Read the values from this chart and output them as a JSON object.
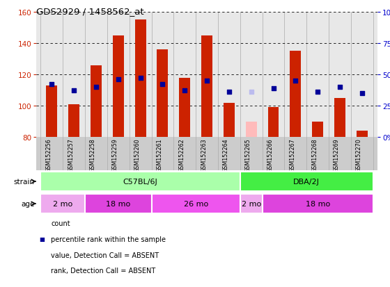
{
  "title": "GDS2929 / 1458562_at",
  "samples": [
    "GSM152256",
    "GSM152257",
    "GSM152258",
    "GSM152259",
    "GSM152260",
    "GSM152261",
    "GSM152262",
    "GSM152263",
    "GSM152264",
    "GSM152265",
    "GSM152266",
    "GSM152267",
    "GSM152268",
    "GSM152269",
    "GSM152270"
  ],
  "count_values": [
    113,
    101,
    126,
    145,
    155,
    136,
    118,
    145,
    102,
    90,
    99,
    135,
    90,
    105,
    84
  ],
  "count_absent": [
    false,
    false,
    false,
    false,
    false,
    false,
    false,
    false,
    false,
    true,
    false,
    false,
    false,
    false,
    false
  ],
  "rank_values": [
    114,
    110,
    112,
    117,
    118,
    114,
    110,
    116,
    109,
    109,
    111,
    116,
    109,
    112,
    108
  ],
  "rank_absent": [
    false,
    false,
    false,
    false,
    false,
    false,
    false,
    false,
    false,
    true,
    false,
    false,
    false,
    false,
    false
  ],
  "ylim_left": [
    80,
    160
  ],
  "ylim_right": [
    0,
    100
  ],
  "yticks_left": [
    80,
    100,
    120,
    140,
    160
  ],
  "yticks_right": [
    0,
    25,
    50,
    75,
    100
  ],
  "ytick_labels_right": [
    "0%",
    "25%",
    "50%",
    "75%",
    "100%"
  ],
  "color_count": "#cc2200",
  "color_rank": "#000099",
  "color_count_absent": "#ffbbbb",
  "color_rank_absent": "#bbbbee",
  "strain_groups": [
    {
      "label": "C57BL/6J",
      "start": 0,
      "end": 8,
      "color": "#aaffaa"
    },
    {
      "label": "DBA/2J",
      "start": 9,
      "end": 14,
      "color": "#44ee44"
    }
  ],
  "age_spans": [
    {
      "label": "2 mo",
      "start": 0,
      "end": 1,
      "color": "#eeaaee"
    },
    {
      "label": "18 mo",
      "start": 2,
      "end": 4,
      "color": "#dd44dd"
    },
    {
      "label": "26 mo",
      "start": 5,
      "end": 8,
      "color": "#ee55ee"
    },
    {
      "label": "2 mo",
      "start": 9,
      "end": 9,
      "color": "#eeaaee"
    },
    {
      "label": "18 mo",
      "start": 10,
      "end": 14,
      "color": "#dd44dd"
    }
  ],
  "bar_width": 0.5,
  "rank_marker_size": 22,
  "fig_bg": "#ffffff",
  "plot_bg": "#e8e8e8",
  "label_bg": "#cccccc",
  "label_color_left": "#cc2200",
  "label_color_right": "#0000cc",
  "grid_color": "#000000",
  "sep_color": "#aaaaaa"
}
